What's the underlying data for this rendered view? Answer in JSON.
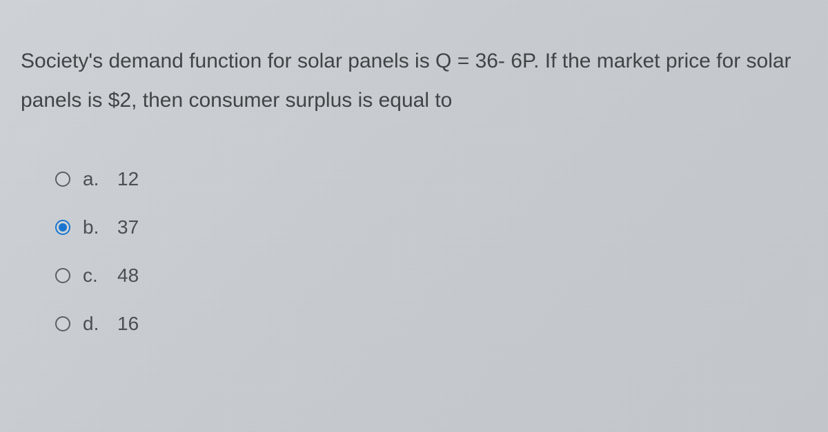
{
  "question": {
    "text": "Society's demand function for solar panels is Q = 36- 6P. If the market price for solar panels is $2, then consumer surplus is equal to"
  },
  "options": [
    {
      "letter": "a.",
      "value": "12",
      "selected": false
    },
    {
      "letter": "b.",
      "value": "37",
      "selected": true
    },
    {
      "letter": "c.",
      "value": "48",
      "selected": false
    },
    {
      "letter": "d.",
      "value": "16",
      "selected": false
    }
  ],
  "styling": {
    "background_color": "#cdd1d5",
    "text_color": "#404548",
    "radio_border_color": "#5a6066",
    "radio_selected_color": "#1976d2",
    "question_fontsize": 30,
    "option_fontsize": 28
  }
}
